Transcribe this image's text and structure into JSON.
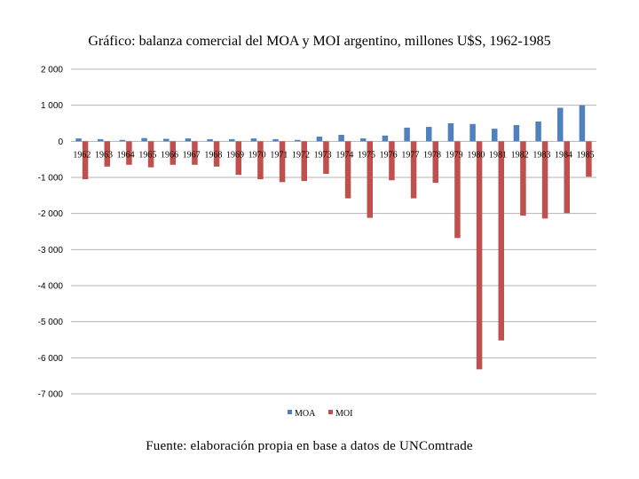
{
  "chart_data": {
    "type": "bar",
    "title": "Gráfico: balanza comercial del MOA y MOI argentino, millones U$S, 1962-1985",
    "xlabel": "",
    "ylabel": "",
    "ylim": [
      -7000,
      2000
    ],
    "yticks": [
      2000,
      1000,
      0,
      -1000,
      -2000,
      -3000,
      -4000,
      -5000,
      -6000,
      -7000
    ],
    "ytick_labels": [
      "2 000",
      "1 000",
      "0",
      "-1 000",
      "-2 000",
      "-3 000",
      "-4 000",
      "-5 000",
      "-6 000",
      "-7 000"
    ],
    "grid": true,
    "legend_position": "bottom",
    "categories": [
      "1962",
      "1963",
      "1964",
      "1965",
      "1966",
      "1967",
      "1968",
      "1969",
      "1970",
      "1971",
      "1972",
      "1973",
      "1974",
      "1975",
      "1976",
      "1977",
      "1978",
      "1979",
      "1980",
      "1981",
      "1982",
      "1983",
      "1984",
      "1985"
    ],
    "series": [
      {
        "name": "MOA",
        "color": "#4F81BD",
        "values": [
          80,
          60,
          40,
          90,
          70,
          80,
          60,
          60,
          80,
          60,
          40,
          130,
          180,
          80,
          160,
          380,
          400,
          500,
          480,
          350,
          450,
          550,
          930,
          1000
        ]
      },
      {
        "name": "MOI",
        "color": "#C0504D",
        "values": [
          -1050,
          -700,
          -650,
          -720,
          -650,
          -650,
          -700,
          -930,
          -1050,
          -1130,
          -1100,
          -900,
          -1580,
          -2120,
          -1080,
          -1580,
          -1150,
          -2680,
          -6320,
          -5520,
          -2060,
          -2140,
          -1990,
          -980
        ]
      }
    ]
  },
  "source": "Fuente: elaboración propia en base a datos de UNComtrade"
}
